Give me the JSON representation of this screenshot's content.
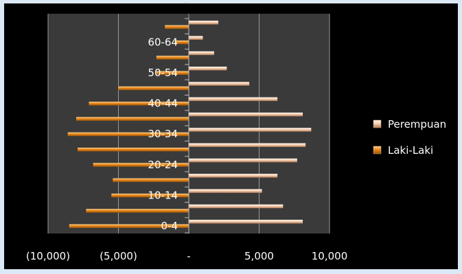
{
  "chart_data": {
    "type": "bar",
    "orientation": "horizontal",
    "layout": "population-pyramid",
    "categories": [
      "0-4",
      "5-9",
      "10-14",
      "15-19",
      "20-24",
      "25-29",
      "30-34",
      "35-39",
      "40-44",
      "45-49",
      "50-54",
      "55-59",
      "60-64",
      "65-69",
      "70+"
    ],
    "category_labels_shown": [
      "0-4",
      "10-14",
      "20-24",
      "30-34",
      "40-44",
      "50-54",
      "60-64"
    ],
    "series": [
      {
        "name": "Perempuan",
        "color": "#f6d2b6",
        "values": [
          8100,
          6700,
          5200,
          6300,
          7700,
          8300,
          8700,
          8100,
          6300,
          4300,
          2700,
          1800,
          1000,
          2100,
          0
        ]
      },
      {
        "name": "Laki-Laki",
        "color": "#e88a1e",
        "values": [
          -8500,
          -7300,
          -5500,
          -5400,
          -6800,
          -7900,
          -8600,
          -8000,
          -7100,
          -5000,
          -2300,
          -2300,
          -1000,
          -1700,
          0
        ]
      }
    ],
    "xlim": [
      -10000,
      10000
    ],
    "xticks": [
      -10000,
      -5000,
      0,
      5000,
      10000
    ],
    "xtick_labels": [
      "(10,000)",
      "(5,000)",
      "-",
      "5,000",
      "10,000"
    ],
    "grid": "vertical",
    "legend": "right",
    "plot_background": "#3a3a3a"
  }
}
